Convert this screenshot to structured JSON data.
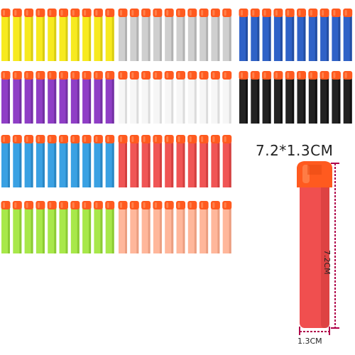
{
  "groups": [
    {
      "name": "yellow",
      "color": "#f7ea1f",
      "shade": "#d9cd12"
    },
    {
      "name": "gray",
      "color": "#cfcfcf",
      "shade": "#b2b2b2"
    },
    {
      "name": "blue",
      "color": "#2f62c7",
      "shade": "#234ea3"
    },
    {
      "name": "purple",
      "color": "#8f3ec6",
      "shade": "#7330a4"
    },
    {
      "name": "white",
      "color": "#f6f6f6",
      "shade": "#dcdcdc"
    },
    {
      "name": "black",
      "color": "#222222",
      "shade": "#111111"
    },
    {
      "name": "sky-blue",
      "color": "#3aa1e3",
      "shade": "#2987c4"
    },
    {
      "name": "red",
      "color": "#f05555",
      "shade": "#d33f3f"
    },
    {
      "name": "lime",
      "color": "#a8e84a",
      "shade": "#8ccb33"
    },
    {
      "name": "peach",
      "color": "#ffb79b",
      "shade": "#eb9e80"
    }
  ],
  "tip_color": "#ff5a1f",
  "tip_highlight": "#ff8a55",
  "dimension_color": "#b0004a",
  "product": {
    "size_text": "7.2*1.3CM",
    "length_label": "7.2CM",
    "width_label": "1.3CM"
  }
}
